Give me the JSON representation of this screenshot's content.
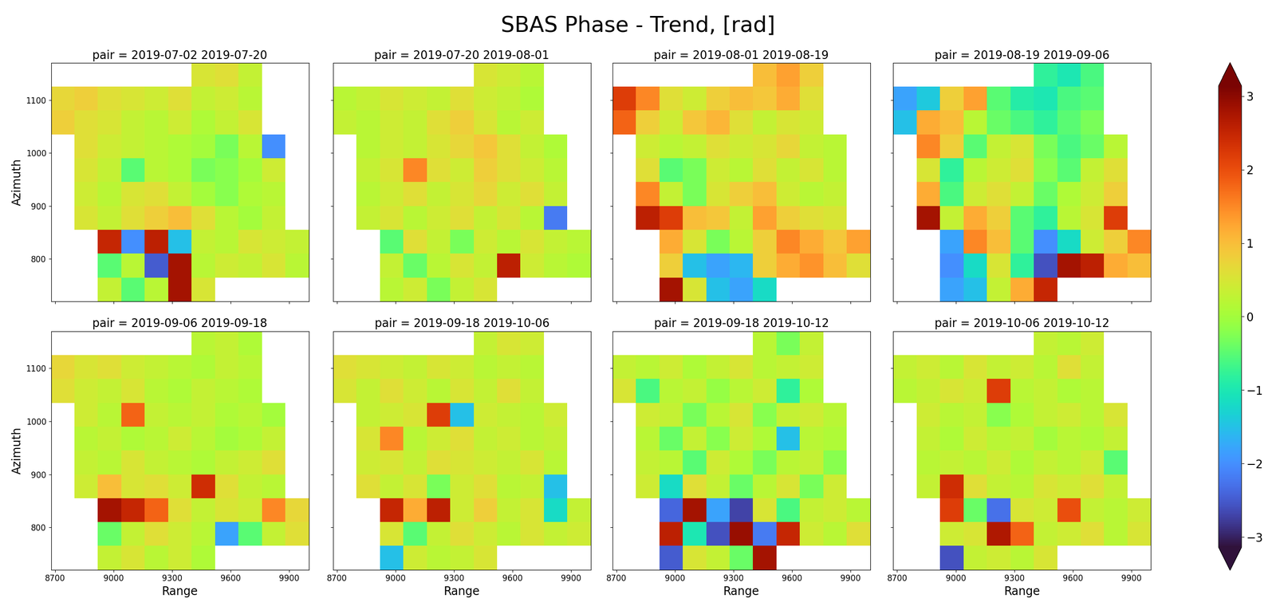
{
  "title": "SBAS Phase - Trend, [rad]",
  "range_edges": [
    8680,
    8800,
    8920,
    9040,
    9160,
    9280,
    9400,
    9520,
    9640,
    9760,
    9880,
    10000
  ],
  "azimuth_edges": [
    720,
    765,
    810,
    855,
    900,
    945,
    990,
    1035,
    1080,
    1125,
    1170
  ],
  "colorbar": {
    "range": [
      -3.14,
      3.14
    ],
    "ticks": [
      {
        "value": -3,
        "label": "−3"
      },
      {
        "value": -2,
        "label": "−2"
      },
      {
        "value": -1,
        "label": "−1"
      },
      0,
      1,
      2,
      3
    ]
  },
  "chart_data": [
    {
      "type": "heatmap",
      "title": "pair = 2019-07-02 2019-07-20",
      "ylabel": "Azimuth",
      "tick_labels": "y",
      "xlim": [
        8680,
        10000
      ],
      "ylim": [
        720,
        1170
      ],
      "xticks": [
        8700,
        9000,
        9300,
        9600,
        9900
      ],
      "yticks": [
        800,
        900,
        1000,
        1100
      ],
      "cells": [
        [
          null,
          null,
          0.3,
          -0.5,
          0.2,
          2.8,
          0.5,
          null,
          null,
          null,
          null
        ],
        [
          null,
          null,
          -0.5,
          0.2,
          -2.5,
          2.8,
          0.2,
          0.4,
          0.3,
          0.5,
          0.2
        ],
        [
          null,
          null,
          2.5,
          -2.0,
          2.6,
          -1.5,
          0.3,
          0.2,
          0.5,
          0.4,
          0.3
        ],
        [
          null,
          0.5,
          0.3,
          0.6,
          0.8,
          1.0,
          0.6,
          0.2,
          0.0,
          0.3,
          null
        ],
        [
          null,
          0.4,
          0.2,
          0.5,
          0.6,
          0.3,
          0.0,
          -0.2,
          0.1,
          0.2,
          null
        ],
        [
          null,
          0.5,
          0.3,
          -0.5,
          0.2,
          0.1,
          -0.3,
          -0.2,
          0.0,
          0.4,
          null
        ],
        [
          null,
          0.6,
          0.4,
          0.3,
          0.2,
          0.1,
          0.0,
          -0.3,
          0.2,
          -2.0,
          null
        ],
        [
          0.8,
          0.6,
          0.5,
          0.3,
          0.2,
          0.4,
          0.1,
          0.3,
          0.5,
          null,
          null
        ],
        [
          0.7,
          0.8,
          0.6,
          0.5,
          0.4,
          0.6,
          0.3,
          0.4,
          0.2,
          null,
          null
        ],
        [
          null,
          null,
          null,
          null,
          null,
          null,
          0.5,
          0.6,
          0.3,
          null,
          null
        ]
      ]
    },
    {
      "type": "heatmap",
      "title": "pair = 2019-07-20 2019-08-01",
      "tick_labels": false,
      "xlim": [
        8680,
        10000
      ],
      "ylim": [
        720,
        1170
      ],
      "xticks": [
        8700,
        9000,
        9300,
        9600,
        9900
      ],
      "yticks": [
        800,
        900,
        1000,
        1100
      ],
      "cells": [
        [
          null,
          null,
          0.2,
          0.4,
          -0.3,
          0.3,
          0.5,
          null,
          null,
          null,
          null
        ],
        [
          null,
          null,
          0.3,
          -0.4,
          0.2,
          0.5,
          0.3,
          2.6,
          0.4,
          0.2,
          0.1
        ],
        [
          null,
          null,
          -0.5,
          0.6,
          0.3,
          -0.3,
          0.4,
          0.2,
          0.5,
          0.3,
          0.2
        ],
        [
          null,
          0.3,
          0.5,
          0.2,
          0.4,
          0.6,
          0.3,
          0.5,
          0.2,
          -2.2,
          null
        ],
        [
          null,
          0.2,
          0.4,
          0.6,
          0.3,
          0.5,
          0.7,
          0.4,
          0.6,
          0.3,
          null
        ],
        [
          null,
          0.3,
          0.5,
          1.5,
          0.6,
          0.4,
          0.8,
          0.6,
          0.4,
          0.2,
          null
        ],
        [
          null,
          0.2,
          0.4,
          0.3,
          0.5,
          0.7,
          0.9,
          0.6,
          0.3,
          0.1,
          null
        ],
        [
          0.3,
          0.2,
          0.4,
          0.3,
          0.6,
          0.8,
          0.5,
          0.2,
          0.4,
          null,
          null
        ],
        [
          0.2,
          0.3,
          0.5,
          0.4,
          0.3,
          0.6,
          0.4,
          0.3,
          0.1,
          null,
          null
        ],
        [
          null,
          null,
          null,
          null,
          null,
          null,
          0.5,
          0.4,
          0.2,
          null,
          null
        ]
      ]
    },
    {
      "type": "heatmap",
      "title": "pair = 2019-08-01 2019-08-19",
      "tick_labels": false,
      "xlim": [
        8680,
        10000
      ],
      "ylim": [
        720,
        1170
      ],
      "xticks": [
        8700,
        9000,
        9300,
        9600,
        9900
      ],
      "yticks": [
        800,
        900,
        1000,
        1100
      ],
      "cells": [
        [
          null,
          null,
          2.8,
          0.5,
          -1.5,
          -1.8,
          -1.2,
          null,
          null,
          null,
          null
        ],
        [
          null,
          null,
          0.8,
          -1.5,
          -1.8,
          -1.6,
          0.8,
          1.2,
          1.4,
          1.0,
          0.6
        ],
        [
          null,
          null,
          1.2,
          0.5,
          -0.3,
          0.2,
          0.8,
          1.5,
          1.2,
          0.9,
          1.3
        ],
        [
          null,
          2.6,
          2.2,
          1.0,
          0.9,
          0.3,
          1.3,
          0.8,
          0.6,
          0.5,
          null
        ],
        [
          null,
          1.5,
          0.3,
          -0.3,
          0.5,
          0.8,
          1.0,
          0.4,
          0.2,
          0.3,
          null
        ],
        [
          null,
          0.6,
          -0.5,
          -0.3,
          0.4,
          0.2,
          0.6,
          0.3,
          0.5,
          0.2,
          null
        ],
        [
          null,
          0.4,
          0.2,
          0.3,
          0.6,
          0.4,
          0.5,
          0.7,
          0.3,
          0.2,
          null
        ],
        [
          1.8,
          0.8,
          0.4,
          0.9,
          1.1,
          0.6,
          0.3,
          0.5,
          0.4,
          null,
          null
        ],
        [
          2.2,
          1.5,
          0.6,
          0.4,
          0.8,
          1.0,
          0.9,
          1.2,
          0.6,
          null,
          null
        ],
        [
          null,
          null,
          null,
          null,
          null,
          null,
          1.0,
          1.3,
          0.8,
          null,
          null
        ]
      ]
    },
    {
      "type": "heatmap",
      "title": "pair = 2019-08-19 2019-09-06",
      "tick_labels": false,
      "xlim": [
        8680,
        10000
      ],
      "ylim": [
        720,
        1170
      ],
      "xticks": [
        8700,
        9000,
        9300,
        9600,
        9900
      ],
      "yticks": [
        800,
        900,
        1000,
        1100
      ],
      "cells": [
        [
          null,
          null,
          -1.8,
          -1.5,
          0.3,
          1.2,
          2.5,
          null,
          null,
          null,
          null
        ],
        [
          null,
          null,
          -2.0,
          -1.2,
          0.5,
          -0.8,
          -2.6,
          2.8,
          2.6,
          1.2,
          1.0
        ],
        [
          null,
          null,
          -1.8,
          1.5,
          1.0,
          -0.5,
          -2.0,
          -1.2,
          0.4,
          0.8,
          1.5
        ],
        [
          null,
          2.8,
          0.3,
          1.2,
          0.8,
          -0.5,
          -0.8,
          0.2,
          0.5,
          2.2,
          null
        ],
        [
          null,
          1.2,
          -0.6,
          0.4,
          0.6,
          0.3,
          -0.4,
          0.1,
          0.4,
          0.8,
          null
        ],
        [
          null,
          0.5,
          -0.8,
          0.2,
          0.4,
          0.6,
          -0.2,
          -0.5,
          0.3,
          0.6,
          null
        ],
        [
          null,
          1.5,
          0.8,
          -0.5,
          0.3,
          0.5,
          -0.3,
          -0.6,
          -0.4,
          0.2,
          null
        ],
        [
          -1.5,
          1.2,
          1.0,
          0.2,
          -0.4,
          -0.6,
          -0.8,
          -0.5,
          -0.3,
          null,
          null
        ],
        [
          -1.8,
          -1.4,
          0.8,
          1.3,
          -0.5,
          -0.9,
          -1.0,
          -0.6,
          -0.5,
          null,
          null
        ],
        [
          null,
          null,
          null,
          null,
          null,
          null,
          -0.8,
          -1.0,
          -0.6,
          null,
          null
        ]
      ]
    },
    {
      "type": "heatmap",
      "title": "pair = 2019-09-06 2019-09-18",
      "xlabel": "Range",
      "ylabel": "Azimuth",
      "xlim": [
        8680,
        10000
      ],
      "ylim": [
        720,
        1170
      ],
      "xticks": [
        8700,
        9000,
        9300,
        9600,
        9900
      ],
      "yticks": [
        800,
        900,
        1000,
        1100
      ],
      "cells": [
        [
          null,
          null,
          0.3,
          0.5,
          0.2,
          0.4,
          0.1,
          null,
          null,
          null,
          null
        ],
        [
          null,
          null,
          -0.4,
          0.3,
          0.6,
          0.4,
          0.2,
          -1.8,
          -0.5,
          0.3,
          0.6
        ],
        [
          null,
          null,
          2.8,
          2.5,
          1.8,
          0.6,
          0.3,
          0.5,
          0.4,
          1.5,
          0.7
        ],
        [
          null,
          0.4,
          1.0,
          0.5,
          0.6,
          0.4,
          2.4,
          0.6,
          0.3,
          0.2,
          null
        ],
        [
          null,
          0.3,
          0.2,
          0.5,
          0.3,
          0.2,
          0.1,
          0.3,
          0.4,
          0.6,
          null
        ],
        [
          null,
          0.2,
          0.3,
          0.1,
          0.2,
          0.4,
          0.2,
          0.0,
          0.1,
          0.3,
          null
        ],
        [
          null,
          0.4,
          0.2,
          1.8,
          0.3,
          0.2,
          0.3,
          0.1,
          0.2,
          0.0,
          null
        ],
        [
          0.6,
          0.4,
          0.3,
          0.5,
          0.2,
          0.1,
          0.3,
          0.2,
          0.1,
          null,
          null
        ],
        [
          0.7,
          0.5,
          0.6,
          0.4,
          0.3,
          0.2,
          0.1,
          0.3,
          0.2,
          null,
          null
        ],
        [
          null,
          null,
          null,
          null,
          null,
          null,
          0.2,
          0.3,
          0.1,
          null,
          null
        ]
      ]
    },
    {
      "type": "heatmap",
      "title": "pair = 2019-09-18 2019-10-06",
      "xlabel": "Range",
      "tick_labels": "x",
      "xlim": [
        8680,
        10000
      ],
      "ylim": [
        720,
        1170
      ],
      "xticks": [
        8700,
        9000,
        9300,
        9600,
        9900
      ],
      "yticks": [
        800,
        900,
        1000,
        1100
      ],
      "cells": [
        [
          null,
          null,
          -1.5,
          0.4,
          0.2,
          0.3,
          0.5,
          null,
          null,
          null,
          null
        ],
        [
          null,
          null,
          0.5,
          -0.5,
          0.3,
          0.6,
          0.4,
          0.2,
          0.5,
          0.3,
          0.4
        ],
        [
          null,
          null,
          2.5,
          1.2,
          2.6,
          0.4,
          0.8,
          0.3,
          0.5,
          -1.2,
          0.3
        ],
        [
          null,
          0.6,
          0.3,
          0.5,
          -0.3,
          0.4,
          0.6,
          0.2,
          0.3,
          -1.5,
          null
        ],
        [
          null,
          0.4,
          0.5,
          0.3,
          0.6,
          0.5,
          0.4,
          0.3,
          0.5,
          0.2,
          null
        ],
        [
          null,
          0.5,
          1.5,
          0.2,
          0.4,
          0.6,
          0.3,
          0.4,
          0.2,
          0.3,
          null
        ],
        [
          null,
          0.3,
          0.4,
          0.5,
          2.2,
          -1.5,
          0.4,
          0.3,
          0.2,
          0.4,
          null
        ],
        [
          0.5,
          0.3,
          0.6,
          0.4,
          0.2,
          0.5,
          0.3,
          0.6,
          0.3,
          null,
          null
        ],
        [
          0.6,
          0.5,
          0.4,
          0.3,
          0.5,
          0.4,
          0.2,
          0.3,
          0.2,
          null,
          null
        ],
        [
          null,
          null,
          null,
          null,
          null,
          null,
          0.3,
          0.5,
          0.4,
          null,
          null
        ]
      ]
    },
    {
      "type": "heatmap",
      "title": "pair = 2019-09-18 2019-10-12",
      "xlabel": "Range",
      "tick_labels": "x",
      "xlim": [
        8680,
        10000
      ],
      "ylim": [
        720,
        1170
      ],
      "xticks": [
        8700,
        9000,
        9300,
        9600,
        9900
      ],
      "yticks": [
        800,
        900,
        1000,
        1100
      ],
      "cells": [
        [
          null,
          null,
          -2.5,
          0.5,
          0.3,
          -0.4,
          2.8,
          null,
          null,
          null,
          null
        ],
        [
          null,
          null,
          2.6,
          -1.0,
          -2.6,
          2.9,
          -2.2,
          2.5,
          0.4,
          0.2,
          0.6
        ],
        [
          null,
          null,
          -2.4,
          2.8,
          -1.8,
          -2.7,
          0.5,
          -0.6,
          0.3,
          0.4,
          0.2
        ],
        [
          null,
          0.4,
          -1.2,
          0.6,
          0.3,
          -0.4,
          0.2,
          0.5,
          -0.3,
          0.4,
          null
        ],
        [
          null,
          0.3,
          0.2,
          -0.5,
          0.4,
          0.1,
          -0.3,
          0.2,
          0.3,
          -0.2,
          null
        ],
        [
          null,
          0.2,
          -0.4,
          0.3,
          -0.2,
          0.4,
          0.1,
          -1.5,
          0.2,
          0.1,
          null
        ],
        [
          null,
          0.4,
          0.3,
          -0.3,
          0.2,
          0.5,
          -0.2,
          0.3,
          0.4,
          0.2,
          null
        ],
        [
          0.5,
          -0.6,
          0.2,
          0.3,
          -0.1,
          0.2,
          0.4,
          -0.8,
          0.1,
          null,
          null
        ],
        [
          0.3,
          0.2,
          0.4,
          0.1,
          0.3,
          0.5,
          0.2,
          0.3,
          0.4,
          null,
          null
        ],
        [
          null,
          null,
          null,
          null,
          null,
          null,
          0.2,
          -0.3,
          0.3,
          null,
          null
        ]
      ]
    },
    {
      "type": "heatmap",
      "title": "pair = 2019-10-06 2019-10-12",
      "xlabel": "Range",
      "tick_labels": "x",
      "xlim": [
        8680,
        10000
      ],
      "ylim": [
        720,
        1170
      ],
      "xticks": [
        8700,
        9000,
        9300,
        9600,
        9900
      ],
      "yticks": [
        800,
        900,
        1000,
        1100
      ],
      "cells": [
        [
          null,
          null,
          -2.6,
          0.3,
          0.4,
          0.2,
          0.5,
          null,
          null,
          null,
          null
        ],
        [
          null,
          null,
          0.4,
          0.5,
          2.7,
          1.8,
          0.3,
          0.4,
          0.6,
          0.2,
          0.5
        ],
        [
          null,
          null,
          2.2,
          -0.4,
          -2.3,
          0.5,
          0.4,
          2.0,
          0.3,
          0.2,
          0.4
        ],
        [
          null,
          0.3,
          2.4,
          0.6,
          0.3,
          0.2,
          0.5,
          0.4,
          0.6,
          0.3,
          null
        ],
        [
          null,
          0.2,
          0.3,
          0.2,
          0.4,
          0.1,
          0.3,
          0.2,
          0.4,
          -0.5,
          null
        ],
        [
          null,
          0.3,
          0.1,
          0.4,
          0.2,
          0.3,
          0.0,
          0.2,
          0.1,
          0.3,
          null
        ],
        [
          null,
          0.4,
          0.2,
          0.3,
          -0.2,
          0.1,
          0.3,
          0.4,
          0.2,
          0.5,
          null
        ],
        [
          0.2,
          0.3,
          0.5,
          0.4,
          2.2,
          0.2,
          0.3,
          0.1,
          0.2,
          null,
          null
        ],
        [
          0.3,
          0.4,
          0.2,
          0.5,
          0.3,
          0.4,
          0.2,
          0.6,
          0.3,
          null,
          null
        ],
        [
          null,
          null,
          null,
          null,
          null,
          null,
          0.3,
          0.2,
          0.4,
          null,
          null
        ]
      ]
    }
  ]
}
